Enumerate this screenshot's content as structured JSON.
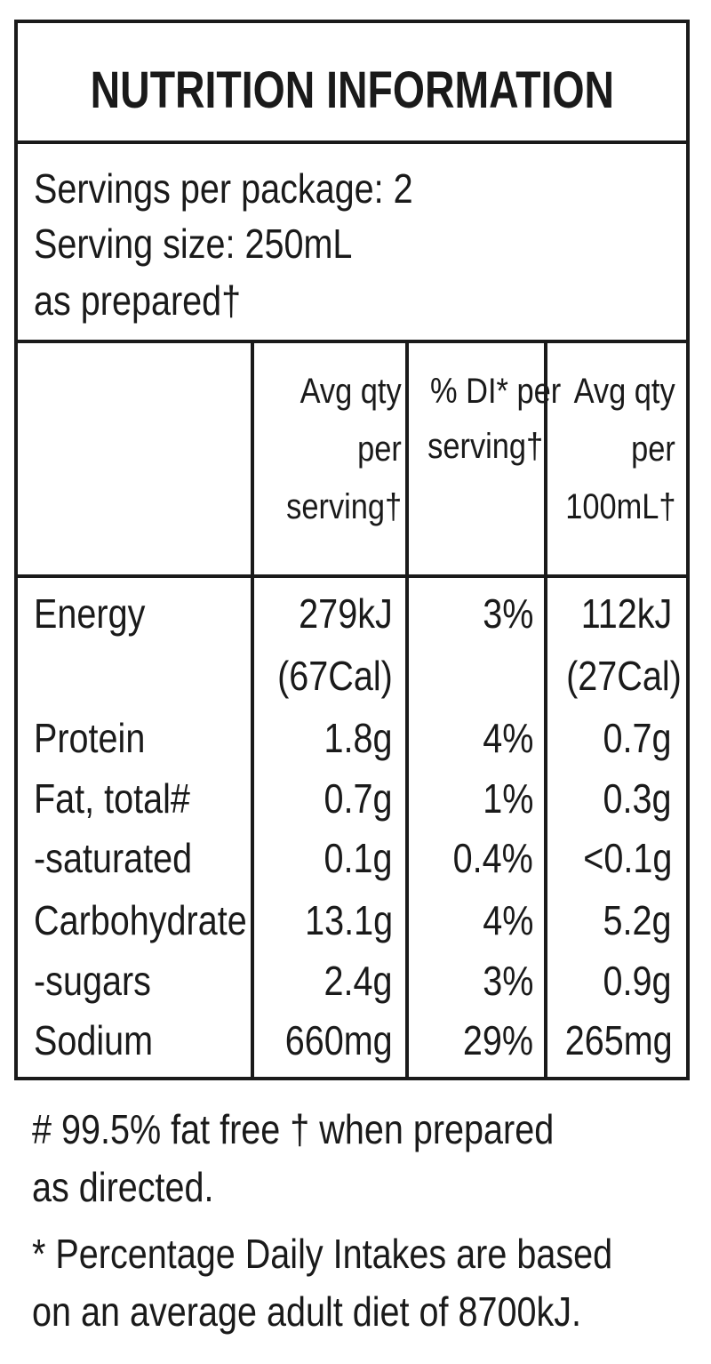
{
  "title": "NUTRITION INFORMATION",
  "servings": {
    "per_package": "Servings per package: 2",
    "size": "Serving size: 250mL",
    "note": "as prepared†"
  },
  "columns": [
    [
      "Avg qty",
      "per",
      "serving†"
    ],
    [
      "% DI* per",
      "serving†"
    ],
    [
      "Avg qty",
      "per",
      "100mL†"
    ]
  ],
  "rows": [
    {
      "name": "Energy",
      "per_serving": "279kJ",
      "di": "3%",
      "per_100": "112kJ"
    },
    {
      "name": "",
      "per_serving": "(67Cal)",
      "di": "",
      "per_100": "(27Cal)"
    },
    {
      "name": "Protein",
      "per_serving": "1.8g",
      "di": "4%",
      "per_100": "0.7g"
    },
    {
      "name": "Fat, total#",
      "per_serving": "0.7g",
      "di": "1%",
      "per_100": "0.3g"
    },
    {
      "name": "-saturated",
      "per_serving": "0.1g",
      "di": "0.4%",
      "per_100": "<0.1g"
    },
    {
      "name": "Carbohydrate",
      "per_serving": "13.1g",
      "di": "4%",
      "per_100": "5.2g"
    },
    {
      "name": "-sugars",
      "per_serving": "2.4g",
      "di": "3%",
      "per_100": "0.9g"
    },
    {
      "name": "Sodium",
      "per_serving": "660mg",
      "di": "29%",
      "per_100": "265mg"
    }
  ],
  "footnotes": [
    "# 99.5% fat free † when prepared",
    "as directed.",
    "* Percentage Daily Intakes are based",
    "on an average adult diet of 8700kJ."
  ]
}
